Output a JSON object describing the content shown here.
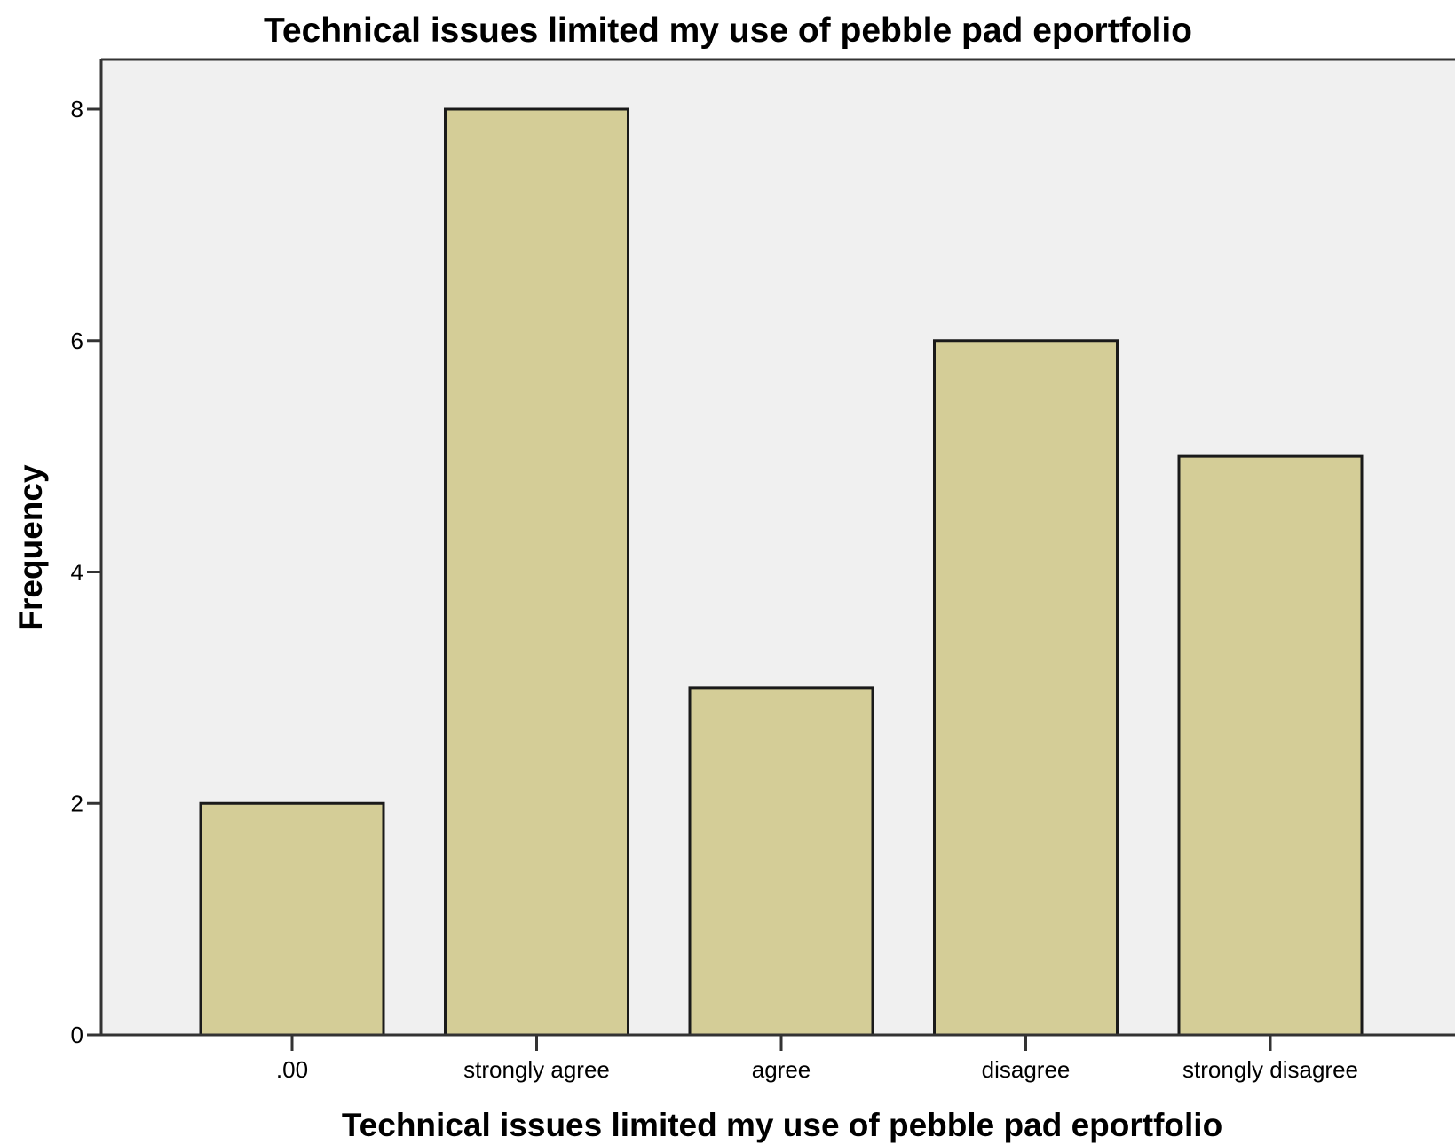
{
  "chart_data": {
    "type": "bar",
    "title": "Technical issues limited my use of pebble pad eportfolio",
    "xlabel": "Technical issues limited my use of pebble pad eportfolio",
    "ylabel": "Frequency",
    "categories": [
      ".00",
      "strongly agree",
      "agree",
      "disagree",
      "strongly disagree"
    ],
    "values": [
      2,
      8,
      3,
      6,
      5
    ],
    "ylim": [
      0,
      8
    ],
    "yticks": [
      0,
      2,
      4,
      6,
      8
    ],
    "grid": false,
    "legend": "none",
    "colors": {
      "bar_fill": "#d4cd97",
      "bar_stroke": "#1a1a1a",
      "plot_background": "#f0f0f0",
      "axis": "#333333"
    }
  }
}
